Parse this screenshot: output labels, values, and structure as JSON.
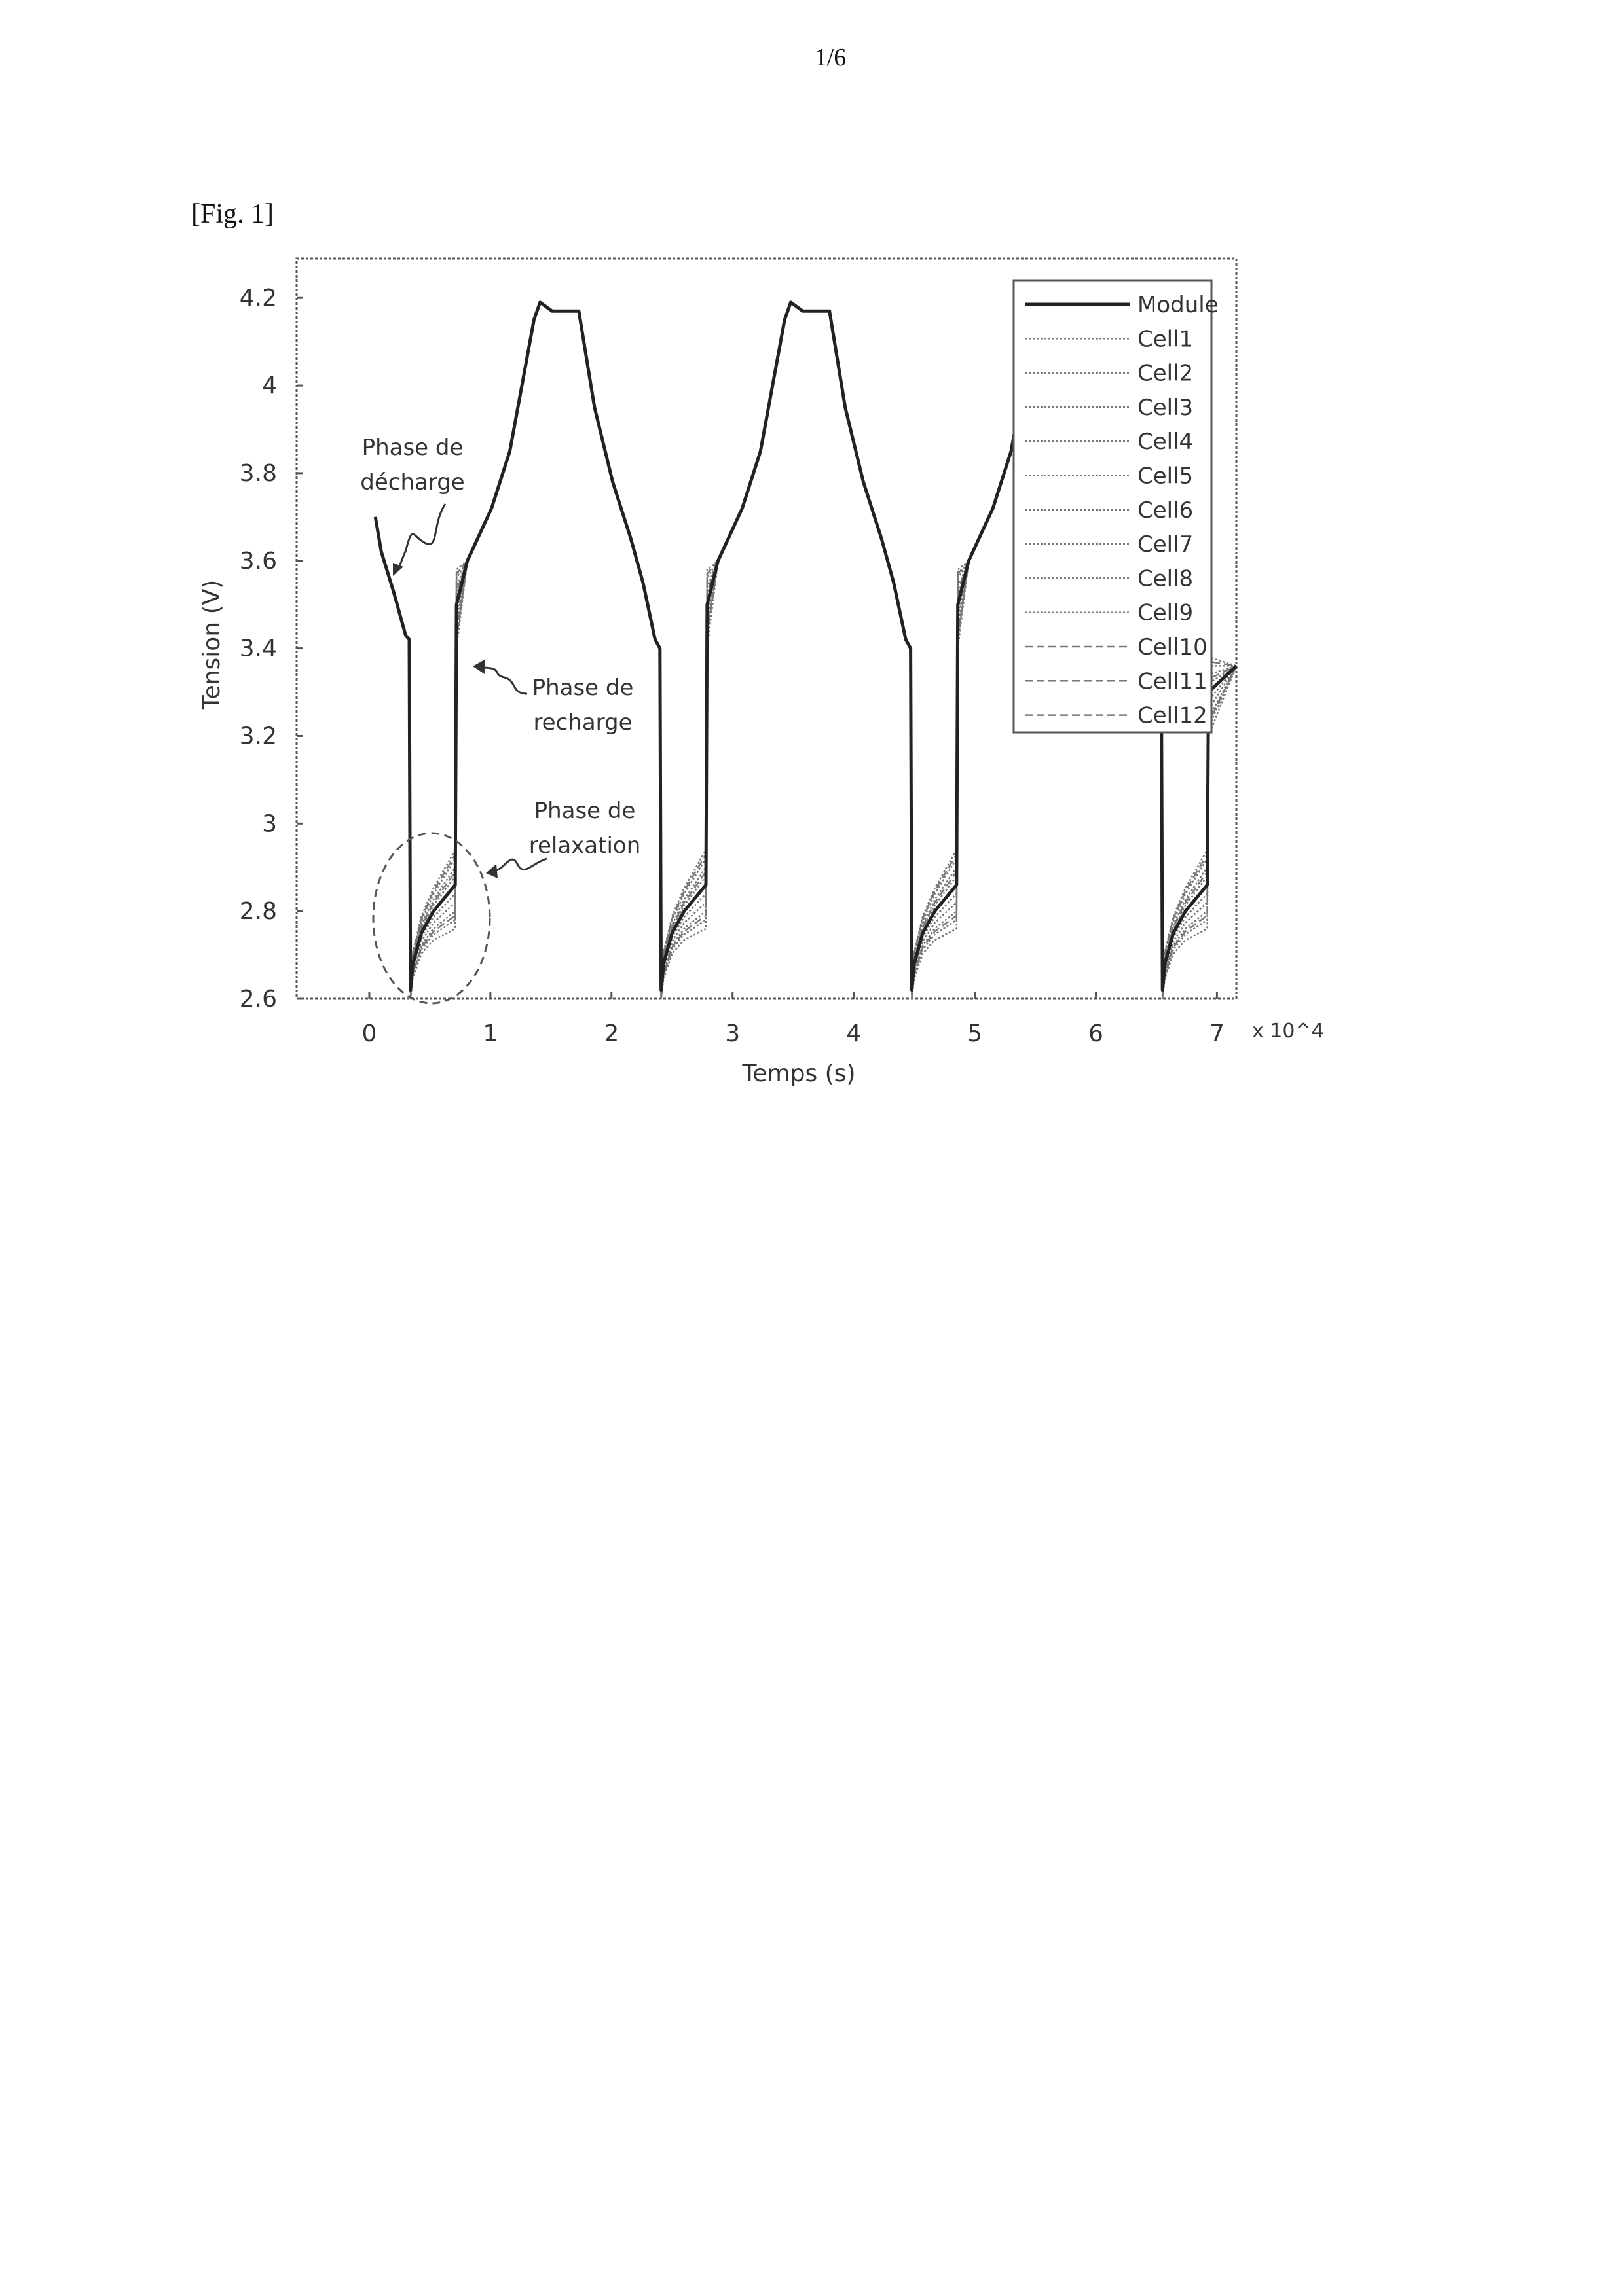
{
  "page": {
    "number": "1/6",
    "figure_label": "[Fig. 1]"
  },
  "chart_data": {
    "type": "line",
    "xlabel": "Temps (s)",
    "ylabel": "Tension (V)",
    "x_multiplier": "x 10^4",
    "xlim": [
      -0.6,
      7.16
    ],
    "ylim": [
      2.6,
      4.29
    ],
    "x_ticks": [
      "0",
      "1",
      "2",
      "3",
      "4",
      "5",
      "6",
      "7"
    ],
    "y_ticks": [
      "2.6",
      "2.8",
      "3",
      "3.2",
      "3.4",
      "3.6",
      "3.8",
      "4",
      "4.2"
    ],
    "grid": false,
    "legend_position": "top-right",
    "colors": {
      "module": "#222222",
      "cells": "#777777"
    },
    "module": {
      "name": "Module",
      "points": [
        [
          0.05,
          3.7
        ],
        [
          0.1,
          3.62
        ],
        [
          0.2,
          3.53
        ],
        [
          0.3,
          3.43
        ],
        [
          0.33,
          3.42
        ],
        [
          0.34,
          2.62
        ],
        [
          0.36,
          2.68
        ],
        [
          0.43,
          2.75
        ],
        [
          0.53,
          2.8
        ],
        [
          0.71,
          2.86
        ],
        [
          0.72,
          3.5
        ],
        [
          0.81,
          3.6
        ],
        [
          1.01,
          3.72
        ],
        [
          1.16,
          3.85
        ],
        [
          1.26,
          4.0
        ],
        [
          1.36,
          4.15
        ],
        [
          1.41,
          4.19
        ],
        [
          1.51,
          4.17
        ],
        [
          1.73,
          4.17
        ],
        [
          1.86,
          3.95
        ],
        [
          2.01,
          3.78
        ],
        [
          2.16,
          3.65
        ],
        [
          2.26,
          3.55
        ],
        [
          2.36,
          3.42
        ],
        [
          2.4,
          3.4
        ],
        [
          2.41,
          2.62
        ],
        [
          2.43,
          2.68
        ],
        [
          2.5,
          2.75
        ],
        [
          2.6,
          2.8
        ],
        [
          2.78,
          2.86
        ],
        [
          2.79,
          3.5
        ],
        [
          2.88,
          3.6
        ],
        [
          3.08,
          3.72
        ],
        [
          3.23,
          3.85
        ],
        [
          3.33,
          4.0
        ],
        [
          3.43,
          4.15
        ],
        [
          3.48,
          4.19
        ],
        [
          3.58,
          4.17
        ],
        [
          3.8,
          4.17
        ],
        [
          3.93,
          3.95
        ],
        [
          4.08,
          3.78
        ],
        [
          4.23,
          3.65
        ],
        [
          4.33,
          3.55
        ],
        [
          4.43,
          3.42
        ],
        [
          4.47,
          3.4
        ],
        [
          4.48,
          2.62
        ],
        [
          4.5,
          2.68
        ],
        [
          4.57,
          2.75
        ],
        [
          4.67,
          2.8
        ],
        [
          4.85,
          2.86
        ],
        [
          4.86,
          3.5
        ],
        [
          4.95,
          3.6
        ],
        [
          5.15,
          3.72
        ],
        [
          5.3,
          3.85
        ],
        [
          5.4,
          4.0
        ],
        [
          5.5,
          4.15
        ],
        [
          5.55,
          4.19
        ],
        [
          5.65,
          4.17
        ],
        [
          5.87,
          4.17
        ],
        [
          6.0,
          3.95
        ],
        [
          6.15,
          3.78
        ],
        [
          6.3,
          3.65
        ],
        [
          6.4,
          3.55
        ],
        [
          6.5,
          3.42
        ],
        [
          6.54,
          3.4
        ],
        [
          6.55,
          2.62
        ],
        [
          6.57,
          2.68
        ],
        [
          6.64,
          2.75
        ],
        [
          6.74,
          2.8
        ],
        [
          6.92,
          2.86
        ],
        [
          6.93,
          3.3
        ],
        [
          7.16,
          3.36
        ]
      ]
    },
    "cells": [
      {
        "name": "Cell1",
        "style": "dotted",
        "relaxation_end": 2.94
      },
      {
        "name": "Cell2",
        "style": "dotted",
        "relaxation_end": 2.92
      },
      {
        "name": "Cell3",
        "style": "dotted",
        "relaxation_end": 2.9
      },
      {
        "name": "Cell4",
        "style": "dotted",
        "relaxation_end": 2.88
      },
      {
        "name": "Cell5",
        "style": "dotted",
        "relaxation_end": 2.84
      },
      {
        "name": "Cell6",
        "style": "dotted",
        "relaxation_end": 2.82
      },
      {
        "name": "Cell7",
        "style": "dotted",
        "relaxation_end": 2.8
      },
      {
        "name": "Cell8",
        "style": "dotted",
        "relaxation_end": 2.78
      },
      {
        "name": "Cell9",
        "style": "dotted",
        "relaxation_end": 2.76
      },
      {
        "name": "Cell10",
        "style": "dashed",
        "relaxation_end": 2.93
      },
      {
        "name": "Cell11",
        "style": "dashed",
        "relaxation_end": 2.89
      },
      {
        "name": "Cell12",
        "style": "dashed",
        "relaxation_end": 2.79
      }
    ],
    "annotations": [
      {
        "lines": [
          "Phase de",
          "décharge"
        ]
      },
      {
        "lines": [
          "Phase de",
          "recharge"
        ]
      },
      {
        "lines": [
          "Phase de",
          "relaxation"
        ]
      }
    ]
  }
}
